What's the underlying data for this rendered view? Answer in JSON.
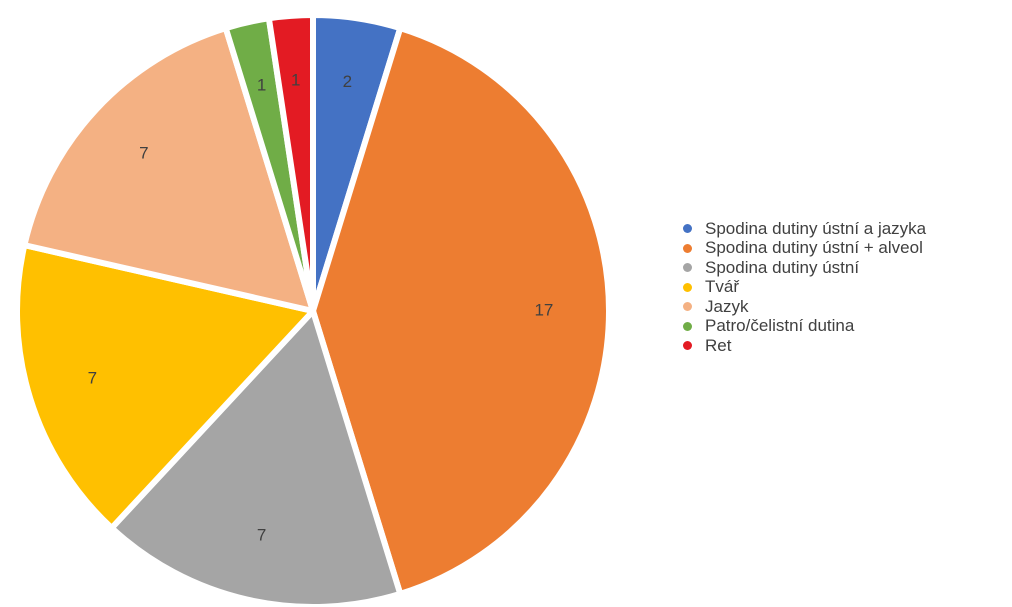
{
  "chart_data": {
    "type": "pie",
    "title": "",
    "legend_position": "right",
    "start_angle_deg": 0,
    "direction": "clockwise",
    "slices": [
      {
        "label": "Spodina dutiny ústní a jazyka",
        "value": 2,
        "color": "#4472C4"
      },
      {
        "label": "Spodina dutiny ústní + alveol",
        "value": 17,
        "color": "#ED7D31"
      },
      {
        "label": "Spodina dutiny ústní",
        "value": 7,
        "color": "#A5A5A5"
      },
      {
        "label": "Tvář",
        "value": 7,
        "color": "#FFC000"
      },
      {
        "label": "Jazyk",
        "value": 7,
        "color": "#F4B183"
      },
      {
        "label": "Patro/čelistní dutina",
        "value": 1,
        "color": "#70AD47"
      },
      {
        "label": "Ret",
        "value": 1,
        "color": "#E31B23"
      }
    ]
  }
}
